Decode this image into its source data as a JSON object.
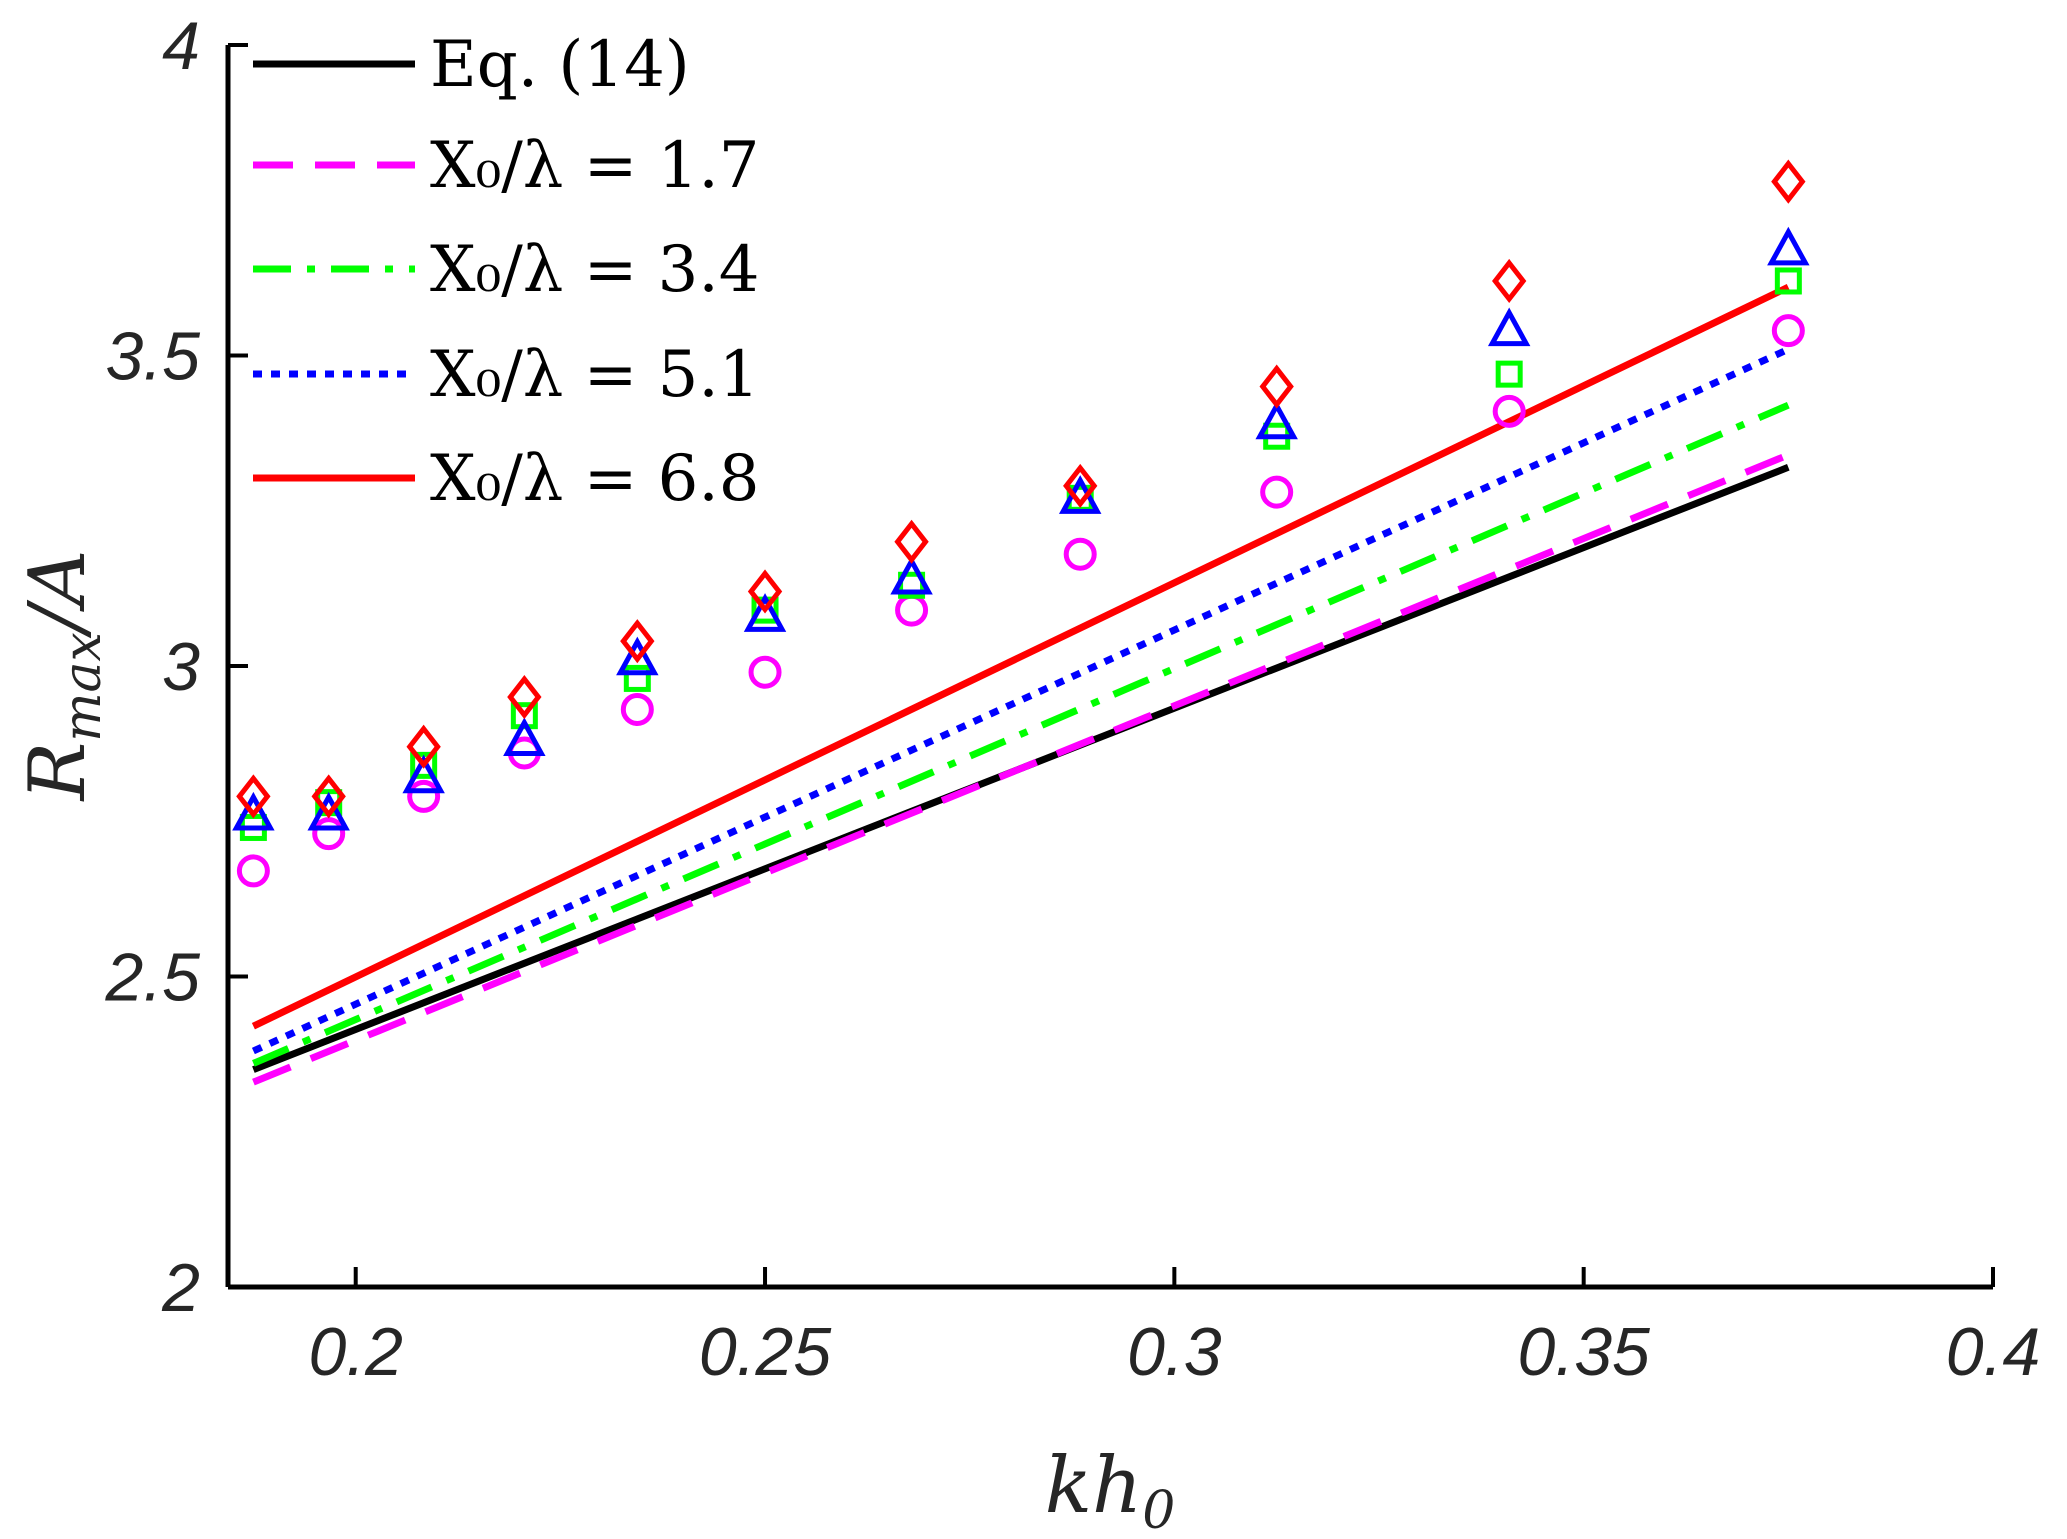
{
  "chart_data": {
    "type": "line",
    "xlabel": "kh₀",
    "ylabel": "Rmax / A",
    "ylabel_main": "R",
    "ylabel_sub": "max",
    "ylabel_den": "/A",
    "xlabel_main": "kh",
    "xlabel_sub": "0",
    "xlim": [
      0.1844,
      0.4
    ],
    "ylim": [
      2,
      4
    ],
    "xticks": [
      0.2,
      0.25,
      0.3,
      0.35,
      0.4
    ],
    "xtick_labels": [
      "0.2",
      "0.25",
      "0.3",
      "0.35",
      "0.4"
    ],
    "yticks": [
      2,
      2.5,
      3,
      3.5,
      4
    ],
    "ytick_labels": [
      "2",
      "2.5",
      "3",
      "3.5",
      "4"
    ],
    "legend_position": "top-left",
    "legend": [
      {
        "label": "Eq. (14)",
        "color": "#000000",
        "style": "solid"
      },
      {
        "label": "X₀/λ = 1.7",
        "color": "#ff00ff",
        "style": "dashed"
      },
      {
        "label": "X₀/λ = 3.4",
        "color": "#00ff00",
        "style": "dashdot"
      },
      {
        "label": "X₀/λ = 5.1",
        "color": "#0000ff",
        "style": "dotted"
      },
      {
        "label": "X₀/λ = 6.8",
        "color": "#ff0000",
        "style": "solid"
      }
    ],
    "lines": [
      {
        "name": "Eq. (14)",
        "color": "#000000",
        "style": "solid",
        "x": [
          0.1875,
          0.375
        ],
        "y": [
          2.35,
          3.32
        ]
      },
      {
        "name": "X0/lambda = 1.7",
        "color": "#ff00ff",
        "style": "dashed",
        "x": [
          0.1875,
          0.375
        ],
        "y": [
          2.33,
          3.34
        ]
      },
      {
        "name": "X0/lambda = 3.4",
        "color": "#00ff00",
        "style": "dashdot",
        "x": [
          0.1875,
          0.375
        ],
        "y": [
          2.36,
          3.42
        ]
      },
      {
        "name": "X0/lambda = 5.1",
        "color": "#0000ff",
        "style": "dotted",
        "x": [
          0.1875,
          0.375
        ],
        "y": [
          2.38,
          3.51
        ]
      },
      {
        "name": "X0/lambda = 6.8",
        "color": "#ff0000",
        "style": "solid",
        "x": [
          0.1875,
          0.375
        ],
        "y": [
          2.42,
          3.61
        ]
      }
    ],
    "markers": [
      {
        "name": "X0/lambda = 1.7",
        "marker": "circle",
        "color": "#ff00ff",
        "x": [
          0.1875,
          0.1967,
          0.2083,
          0.2206,
          0.2344,
          0.25,
          0.2679,
          0.2885,
          0.3125,
          0.3409,
          0.375
        ],
        "y": [
          2.67,
          2.73,
          2.79,
          2.86,
          2.93,
          2.99,
          3.09,
          3.18,
          3.28,
          3.41,
          3.54
        ]
      },
      {
        "name": "X0/lambda = 3.4",
        "marker": "square",
        "color": "#00ff00",
        "x": [
          0.1875,
          0.1967,
          0.2083,
          0.2206,
          0.2344,
          0.25,
          0.2679,
          0.2885,
          0.3125,
          0.3409,
          0.375
        ],
        "y": [
          2.74,
          2.78,
          2.84,
          2.92,
          2.98,
          3.09,
          3.13,
          3.27,
          3.37,
          3.47,
          3.62
        ]
      },
      {
        "name": "X0/lambda = 5.1",
        "marker": "triangle",
        "color": "#0000ff",
        "x": [
          0.1875,
          0.1967,
          0.2083,
          0.2206,
          0.2344,
          0.25,
          0.2679,
          0.2885,
          0.3125,
          0.3409,
          0.375
        ],
        "y": [
          2.76,
          2.76,
          2.82,
          2.88,
          3.01,
          3.08,
          3.14,
          3.27,
          3.39,
          3.54,
          3.67
        ]
      },
      {
        "name": "X0/lambda = 6.8",
        "marker": "diamond",
        "color": "#ff0000",
        "x": [
          0.1875,
          0.1967,
          0.2083,
          0.2206,
          0.2344,
          0.25,
          0.2679,
          0.2885,
          0.3125,
          0.3409,
          0.375
        ],
        "y": [
          2.79,
          2.79,
          2.87,
          2.95,
          3.04,
          3.12,
          3.2,
          3.29,
          3.45,
          3.62,
          3.78
        ]
      }
    ]
  }
}
